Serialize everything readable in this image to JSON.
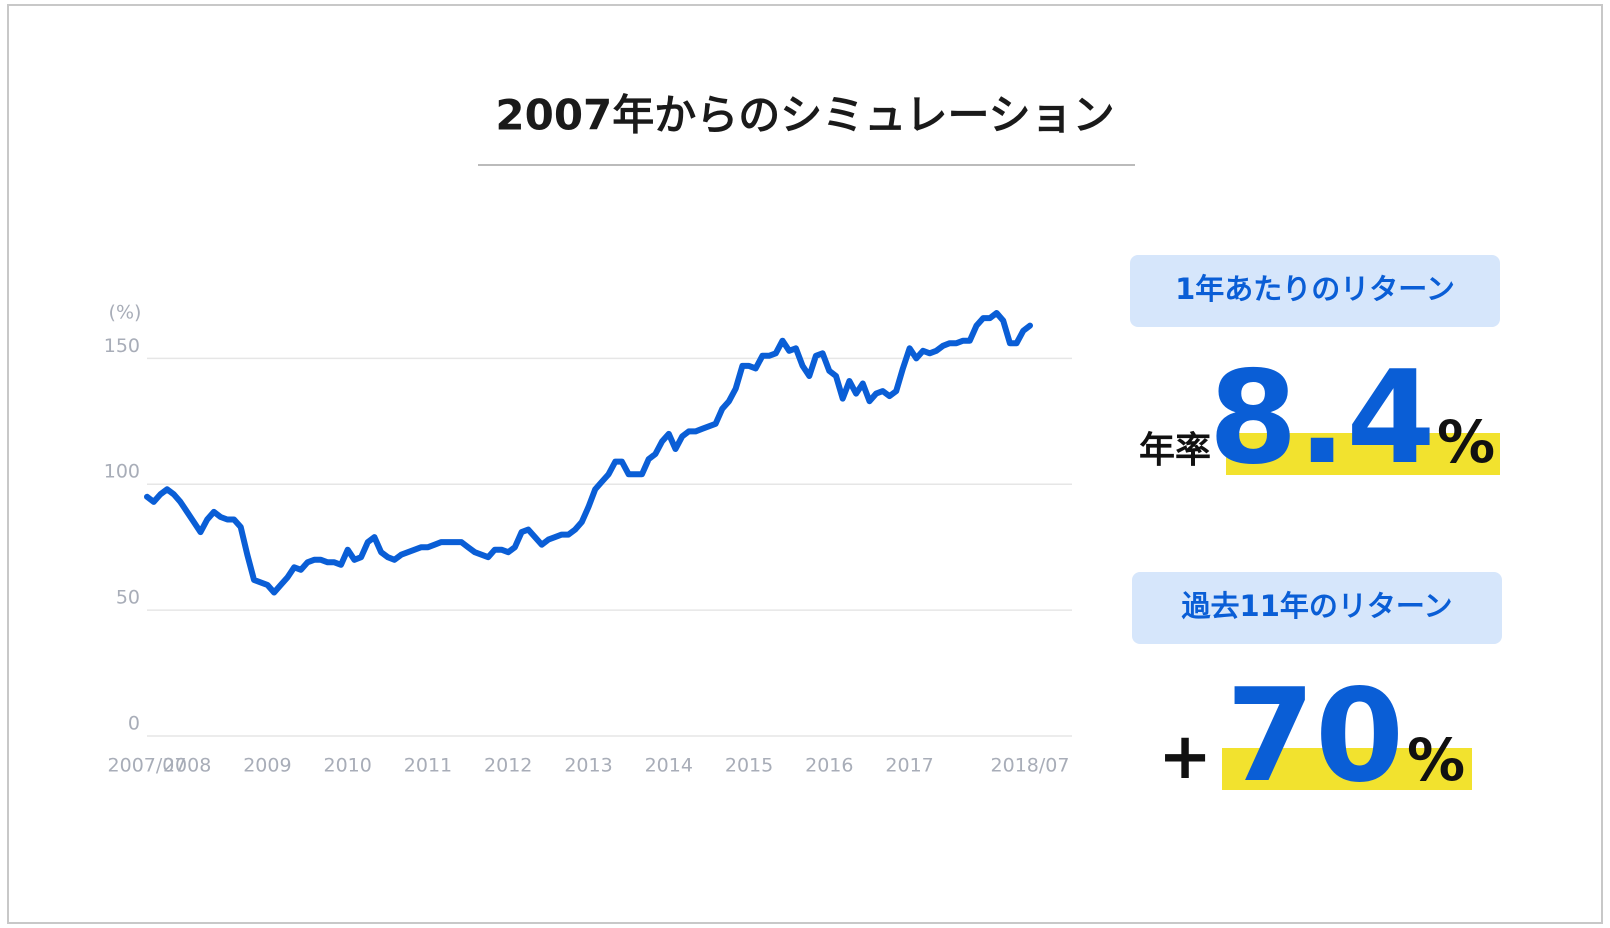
{
  "chart_data": {
    "type": "line",
    "title": "2007年からのシミュレーション",
    "y_unit_label": "(%)",
    "categories": [
      "2007/07",
      null,
      null,
      null,
      null,
      null,
      "2008",
      null,
      null,
      null,
      null,
      null,
      null,
      null,
      null,
      null,
      null,
      null,
      "2009",
      null,
      null,
      null,
      null,
      null,
      null,
      null,
      null,
      null,
      null,
      null,
      "2010",
      null,
      null,
      null,
      null,
      null,
      null,
      null,
      null,
      null,
      null,
      null,
      "2011",
      null,
      null,
      null,
      null,
      null,
      null,
      null,
      null,
      null,
      null,
      null,
      "2012",
      null,
      null,
      null,
      null,
      null,
      null,
      null,
      null,
      null,
      null,
      null,
      "2013",
      null,
      null,
      null,
      null,
      null,
      null,
      null,
      null,
      null,
      null,
      null,
      "2014",
      null,
      null,
      null,
      null,
      null,
      null,
      null,
      null,
      null,
      null,
      null,
      "2015",
      null,
      null,
      null,
      null,
      null,
      null,
      null,
      null,
      null,
      null,
      null,
      "2016",
      null,
      null,
      null,
      null,
      null,
      null,
      null,
      null,
      null,
      null,
      null,
      "2017",
      null,
      null,
      null,
      null,
      null,
      null,
      null,
      null,
      null,
      null,
      null,
      null,
      null,
      null,
      null,
      null,
      null,
      "2018/07"
    ],
    "values": [
      95,
      93,
      96,
      98,
      96,
      93,
      89,
      85,
      81,
      86,
      89,
      87,
      86,
      86,
      83,
      72,
      62,
      61,
      60,
      57,
      60,
      63,
      67,
      66,
      69,
      70,
      70,
      69,
      69,
      68,
      74,
      70,
      71,
      77,
      79,
      73,
      71,
      70,
      72,
      73,
      74,
      75,
      75,
      76,
      77,
      77,
      77,
      77,
      75,
      73,
      72,
      71,
      74,
      74,
      73,
      75,
      81,
      82,
      79,
      76,
      78,
      79,
      80,
      80,
      82,
      85,
      91,
      98,
      101,
      104,
      109,
      109,
      104,
      104,
      104,
      110,
      112,
      117,
      120,
      114,
      119,
      121,
      121,
      122,
      123,
      124,
      130,
      133,
      138,
      147,
      147,
      146,
      151,
      151,
      152,
      157,
      153,
      154,
      147,
      143,
      151,
      152,
      145,
      143,
      134,
      141,
      136,
      140,
      133,
      136,
      137,
      135,
      137,
      146,
      154,
      150,
      153,
      152,
      153,
      155,
      156,
      156,
      157,
      157,
      163,
      166,
      166,
      168,
      165,
      156,
      156,
      161,
      163
    ],
    "color": "#0a5ed6",
    "ylim": [
      0,
      170
    ],
    "yticks": [
      0,
      50,
      100,
      150
    ],
    "grid": true
  },
  "stats": [
    {
      "label": "1年あたりのリターン",
      "prefix": "年率",
      "value": 8.4,
      "unit": "%"
    },
    {
      "label": "過去11年のリターン",
      "prefix": "+",
      "value": 70,
      "unit": "%"
    }
  ]
}
